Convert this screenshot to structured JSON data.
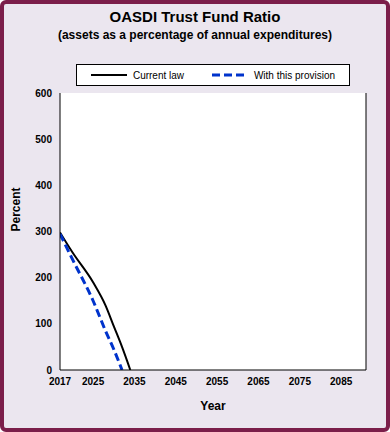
{
  "chart_data": {
    "type": "line",
    "title": "OASDI Trust Fund Ratio",
    "subtitle": "(assets as a percentage of annual expenditures)",
    "x_label": "Year",
    "y_label": "Percent",
    "x": [
      2017,
      2020,
      2025,
      2028,
      2030,
      2032,
      2034
    ],
    "series": [
      {
        "name": "Current law",
        "color": "#000000",
        "line_style": "solid",
        "values": [
          298,
          255,
          190,
          140,
          95,
          50,
          0
        ]
      },
      {
        "name": "With this provision",
        "color": "#0033cc",
        "line_style": "dashed",
        "values": [
          295,
          240,
          150,
          85,
          45,
          0,
          null
        ]
      }
    ],
    "xlim": [
      2017,
      2091
    ],
    "xticks": [
      2017,
      2025,
      2035,
      2045,
      2055,
      2065,
      2075,
      2085
    ],
    "ylim": [
      0,
      600
    ],
    "yticks": [
      0,
      100,
      200,
      300,
      400,
      500,
      600
    ],
    "grid": true,
    "legend": "top"
  }
}
